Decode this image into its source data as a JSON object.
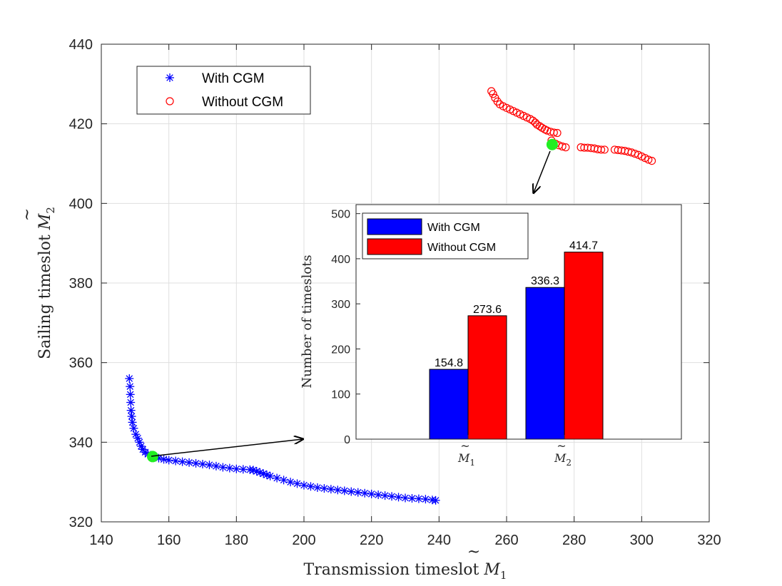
{
  "chart_data": [
    {
      "type": "scatter",
      "xlabel": "Transmission timeslot M̃₁",
      "xlabel_base": "Transmission timeslot ",
      "xlabel_sym": "M",
      "xlabel_sub": "1",
      "ylabel": "Sailing timeslot M̃₂",
      "ylabel_base": "Sailing timeslot ",
      "ylabel_sym": "M",
      "ylabel_sub": "2",
      "xlim": [
        140,
        320
      ],
      "ylim": [
        320,
        440
      ],
      "xticks": [
        "140",
        "160",
        "180",
        "200",
        "220",
        "240",
        "260",
        "280",
        "300",
        "320"
      ],
      "yticks": [
        "320",
        "340",
        "360",
        "380",
        "400",
        "420",
        "440"
      ],
      "grid": true,
      "legend_position": "top-left",
      "series": [
        {
          "name": "With CGM",
          "marker": "asterisk",
          "color": "#0000ff",
          "points": [
            [
              148.3,
              356
            ],
            [
              148.5,
              354
            ],
            [
              148.6,
              352
            ],
            [
              148.7,
              350
            ],
            [
              148.8,
              348
            ],
            [
              149,
              346.5
            ],
            [
              149.2,
              345
            ],
            [
              149.6,
              343.5
            ],
            [
              150.2,
              342
            ],
            [
              150.8,
              341
            ],
            [
              151.3,
              340
            ],
            [
              151.8,
              339
            ],
            [
              152.3,
              338.2
            ],
            [
              153,
              337.5
            ],
            [
              153.8,
              337
            ],
            [
              154.8,
              336.6
            ],
            [
              155.8,
              336.3
            ],
            [
              157,
              336
            ],
            [
              158.5,
              335.7
            ],
            [
              160,
              335.5
            ],
            [
              162,
              335.3
            ],
            [
              164,
              335.1
            ],
            [
              166,
              334.9
            ],
            [
              168,
              334.7
            ],
            [
              170,
              334.5
            ],
            [
              172,
              334.3
            ],
            [
              174,
              334
            ],
            [
              176,
              333.7
            ],
            [
              178,
              333.5
            ],
            [
              180,
              333.3
            ],
            [
              182,
              333.2
            ],
            [
              184,
              333.1
            ],
            [
              185,
              333
            ],
            [
              186,
              332.7
            ],
            [
              187,
              332.4
            ],
            [
              188,
              332.1
            ],
            [
              189,
              331.8
            ],
            [
              190,
              331.5
            ],
            [
              192,
              331
            ],
            [
              194,
              330.5
            ],
            [
              196,
              330
            ],
            [
              198,
              329.6
            ],
            [
              200,
              329.2
            ],
            [
              202,
              328.9
            ],
            [
              204,
              328.6
            ],
            [
              206,
              328.4
            ],
            [
              208,
              328.2
            ],
            [
              210,
              328
            ],
            [
              212,
              327.8
            ],
            [
              214,
              327.6
            ],
            [
              216,
              327.4
            ],
            [
              218,
              327.2
            ],
            [
              220,
              327
            ],
            [
              222,
              326.8
            ],
            [
              224,
              326.6
            ],
            [
              226,
              326.4
            ],
            [
              228,
              326.2
            ],
            [
              230,
              326
            ],
            [
              232,
              325.9
            ],
            [
              234,
              325.8
            ],
            [
              236,
              325.7
            ],
            [
              238,
              325.5
            ],
            [
              239,
              325.4
            ]
          ]
        },
        {
          "name": "Without CGM",
          "marker": "circle",
          "color": "#ff0000",
          "points": [
            [
              255.5,
              428.2
            ],
            [
              256,
              427.5
            ],
            [
              256.6,
              426.5
            ],
            [
              257.3,
              425.6
            ],
            [
              258,
              424.9
            ],
            [
              259,
              424.4
            ],
            [
              260,
              424
            ],
            [
              261,
              423.6
            ],
            [
              262,
              423.2
            ],
            [
              263,
              422.8
            ],
            [
              264,
              422.4
            ],
            [
              265,
              422
            ],
            [
              266,
              421.6
            ],
            [
              267,
              421.2
            ],
            [
              267.8,
              420.8
            ],
            [
              268.5,
              420.3
            ],
            [
              269,
              419.8
            ],
            [
              269.8,
              419.4
            ],
            [
              270.5,
              419
            ],
            [
              271.3,
              418.6
            ],
            [
              272,
              418.3
            ],
            [
              273,
              418
            ],
            [
              274,
              417.8
            ],
            [
              275,
              417.7
            ],
            [
              273.3,
              415.8
            ],
            [
              274.5,
              415
            ],
            [
              275.5,
              414.6
            ],
            [
              276.5,
              414.3
            ],
            [
              277.5,
              414.1
            ],
            [
              282,
              414.1
            ],
            [
              283,
              414
            ],
            [
              284,
              414
            ],
            [
              285,
              413.9
            ],
            [
              286,
              413.8
            ],
            [
              287,
              413.6
            ],
            [
              288,
              413.5
            ],
            [
              289,
              413.5
            ],
            [
              292,
              413.5
            ],
            [
              293,
              413.4
            ],
            [
              294,
              413.3
            ],
            [
              295,
              413.2
            ],
            [
              296,
              413
            ],
            [
              297,
              412.8
            ],
            [
              298,
              412.5
            ],
            [
              299,
              412.2
            ],
            [
              300,
              411.8
            ],
            [
              301,
              411.4
            ],
            [
              302,
              411
            ],
            [
              303,
              410.7
            ]
          ]
        }
      ],
      "highlight_points": [
        [
          155.2,
          336.4
        ],
        [
          273.5,
          414.8
        ]
      ],
      "highlight_color": "#22ee22"
    },
    {
      "type": "bar",
      "ylabel": "Number of timeslots",
      "ylim": [
        0,
        520
      ],
      "yticks": [
        "0",
        "100",
        "200",
        "300",
        "400",
        "500"
      ],
      "grid": false,
      "legend_position": "top-left",
      "categories": [
        "M̃₁",
        "M̃₂"
      ],
      "category_syms": [
        "M",
        "M"
      ],
      "category_subs": [
        "1",
        "2"
      ],
      "series": [
        {
          "name": "With CGM",
          "color": "#0000ff",
          "values": [
            154.8,
            336.3
          ],
          "labels": [
            "154.8",
            "336.3"
          ]
        },
        {
          "name": "Without CGM",
          "color": "#ff0000",
          "values": [
            273.6,
            414.7
          ],
          "labels": [
            "273.6",
            "414.7"
          ]
        }
      ]
    }
  ]
}
